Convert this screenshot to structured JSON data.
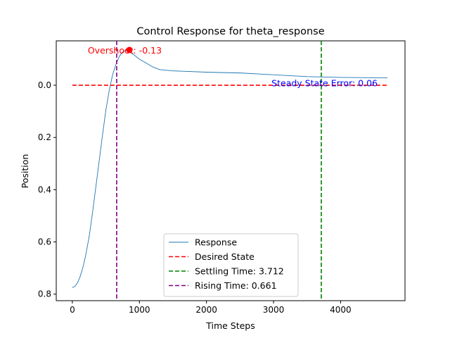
{
  "chart_data": {
    "type": "line",
    "title": "Control Response for theta_response",
    "xlabel": "Time Steps",
    "ylabel": "Position",
    "xlim": [
      -240,
      4960
    ],
    "ylim": [
      0.825,
      -0.17
    ],
    "y_inverted": true,
    "xticks": [
      0,
      1000,
      2000,
      3000,
      4000
    ],
    "xtick_labels": [
      "0",
      "1000",
      "2000",
      "3000",
      "4000"
    ],
    "yticks": [
      0.0,
      0.2,
      0.4,
      0.6,
      0.8
    ],
    "ytick_labels": [
      "0.0",
      "0.2",
      "0.4",
      "0.6",
      "0.8"
    ],
    "grid": false,
    "legend_position": "lower-center",
    "series": [
      {
        "name": "Response",
        "color": "#1f77b4",
        "style": "solid",
        "x": [
          0,
          40,
          80,
          120,
          160,
          200,
          250,
          300,
          350,
          400,
          450,
          500,
          550,
          600,
          650,
          700,
          740,
          780,
          820,
          850,
          900,
          1000,
          1100,
          1200,
          1300,
          1500,
          2000,
          2500,
          3000,
          3500,
          4000,
          4700
        ],
        "y": [
          0.775,
          0.77,
          0.755,
          0.73,
          0.695,
          0.65,
          0.58,
          0.49,
          0.39,
          0.29,
          0.19,
          0.095,
          0.02,
          -0.04,
          -0.08,
          -0.11,
          -0.125,
          -0.132,
          -0.135,
          -0.135,
          -0.12,
          -0.1,
          -0.085,
          -0.07,
          -0.06,
          -0.055,
          -0.05,
          -0.047,
          -0.04,
          -0.033,
          -0.03,
          -0.028
        ]
      },
      {
        "name": "Desired State",
        "color": "#ff0000",
        "style": "dashed",
        "x": [
          0,
          4700
        ],
        "y": [
          0,
          0
        ]
      }
    ],
    "vlines": [
      {
        "name": "Settling Time: 3.712",
        "x": 3712,
        "color": "#008000",
        "style": "dashed"
      },
      {
        "name": "Rising Time: 0.661",
        "x": 661,
        "color": "#800080",
        "style": "dashed"
      }
    ],
    "marker": {
      "x": 850,
      "y": -0.135,
      "color": "#ff0000"
    },
    "annotations": [
      {
        "text": "Overshoot: -0.13",
        "color": "#ff0000",
        "x": 230,
        "y": -0.135
      },
      {
        "text": "Steady State Error: 0.06",
        "color": "#0000ff",
        "x": 2970,
        "y": -0.01
      }
    ]
  }
}
